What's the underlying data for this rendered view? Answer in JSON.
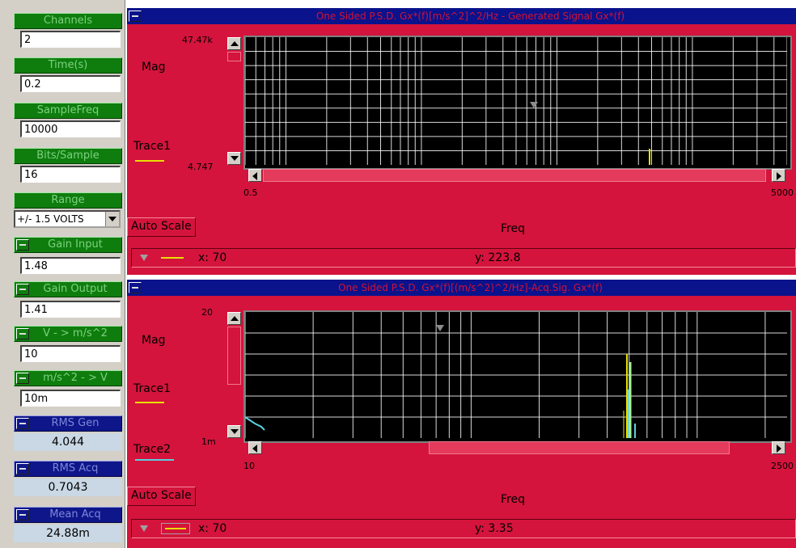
{
  "colors": {
    "panel_red": "#d4143c",
    "title_navy": "#0a128c",
    "green_bar": "#0e7d0e",
    "blue_bar": "#0e168a",
    "trace1": "#e8e000",
    "trace2": "#5ad0e0",
    "plot_bg": "#000000",
    "grid": "#ffffff"
  },
  "controls": {
    "channels": {
      "label": "Channels",
      "value": "2"
    },
    "time": {
      "label": "Time(s)",
      "value": "0.2"
    },
    "samplefreq": {
      "label": "SampleFreq",
      "value": "10000"
    },
    "bits": {
      "label": "Bits/Sample",
      "value": "16"
    },
    "range": {
      "label": "Range",
      "value": "+/- 1.5 VOLTS"
    },
    "gain_input": {
      "label": "Gain Input",
      "value": "1.48"
    },
    "gain_output": {
      "label": "Gain Output",
      "value": "1.41"
    },
    "v_to_ms2": {
      "label": "V - > m/s^2",
      "value": "10"
    },
    "ms2_to_v": {
      "label": "m/s^2 - > V",
      "value": "10m"
    },
    "rms_gen": {
      "label": "RMS Gen",
      "value": "4.044"
    },
    "rms_acq": {
      "label": "RMS Acq",
      "value": "0.7043"
    },
    "mean_acq": {
      "label": "Mean Acq",
      "value": "24.88m"
    }
  },
  "panel1": {
    "title": "One Sided P.S.D. Gx*(f)[m/s^2]^2/Hz - Generated Signal Gx*(f)",
    "y_label": "Mag",
    "y_max": "47.47k",
    "y_min": "4.747",
    "x_min": "0.5",
    "x_max": "5000",
    "x_label": "Freq",
    "legend": [
      {
        "name": "Trace1",
        "color": "#e8e000"
      }
    ],
    "autoscale": "Auto Scale",
    "readout_x": "x: 70",
    "readout_y": "y: 223.8"
  },
  "panel2": {
    "title": "One Sided P.S.D. Gx*(f)[(m/s^2)^2/Hz]-Acq.Sig. Gx*(f)",
    "y_label": "Mag",
    "y_max": "20",
    "y_min": "1m",
    "x_min": "10",
    "x_max": "2500",
    "x_label": "Freq",
    "legend": [
      {
        "name": "Trace1",
        "color": "#e8e000"
      },
      {
        "name": "Trace2",
        "color": "#5ad0e0"
      }
    ],
    "autoscale": "Auto Scale",
    "readout_x": "x: 70",
    "readout_y": "y: 3.35"
  },
  "icons": [
    "minimize-icon",
    "cursor-marker-icon",
    "scroll-up-icon",
    "scroll-down-icon",
    "scroll-left-icon",
    "scroll-right-icon",
    "dropdown-arrow-icon"
  ]
}
